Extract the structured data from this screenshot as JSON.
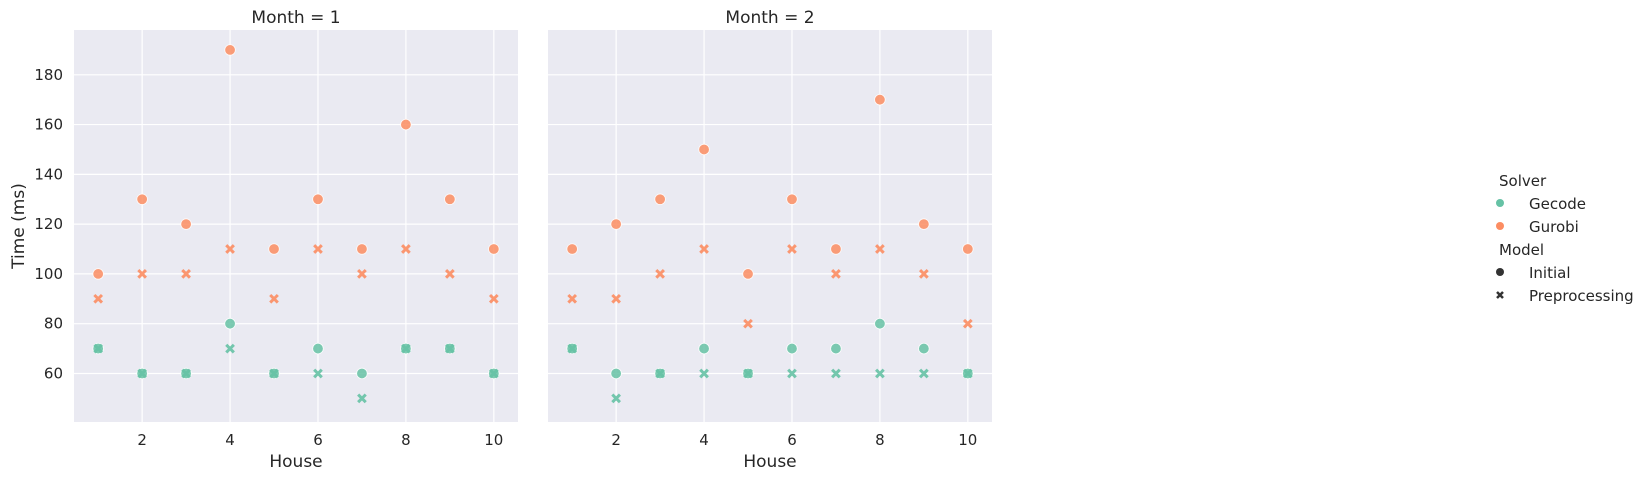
{
  "colors": {
    "Gecode": "#66c2a5",
    "Gurobi": "#fc8d62",
    "panel_bg": "#eaeaf2",
    "grid": "#ffffff",
    "text": "#262626"
  },
  "chart_data": [
    {
      "type": "scatter",
      "title": "Month = 1",
      "xlabel": "House",
      "ylabel": "Time (ms)",
      "xlim": [
        0.45,
        10.55
      ],
      "ylim": [
        40.5,
        198
      ],
      "xticks": [
        2,
        4,
        6,
        8,
        10
      ],
      "yticks": [
        60,
        80,
        100,
        120,
        140,
        160,
        180
      ],
      "grid": true,
      "series": [
        {
          "solver": "Gecode",
          "model": "Initial",
          "marker": "circle",
          "x": [
            1,
            2,
            3,
            4,
            5,
            6,
            7,
            8,
            9,
            10
          ],
          "y": [
            70,
            60,
            60,
            80,
            60,
            70,
            60,
            70,
            70,
            60
          ]
        },
        {
          "solver": "Gecode",
          "model": "Preprocessing",
          "marker": "x",
          "x": [
            1,
            2,
            3,
            4,
            5,
            6,
            7,
            8,
            9,
            10
          ],
          "y": [
            70,
            60,
            60,
            70,
            60,
            60,
            50,
            70,
            70,
            60
          ]
        },
        {
          "solver": "Gurobi",
          "model": "Initial",
          "marker": "circle",
          "x": [
            1,
            2,
            3,
            4,
            5,
            6,
            7,
            8,
            9,
            10
          ],
          "y": [
            100,
            130,
            120,
            190,
            110,
            130,
            110,
            160,
            130,
            110
          ]
        },
        {
          "solver": "Gurobi",
          "model": "Preprocessing",
          "marker": "x",
          "x": [
            1,
            2,
            3,
            4,
            5,
            6,
            7,
            8,
            9,
            10
          ],
          "y": [
            90,
            100,
            100,
            110,
            90,
            110,
            100,
            110,
            100,
            90
          ]
        }
      ]
    },
    {
      "type": "scatter",
      "title": "Month = 2",
      "xlabel": "House",
      "ylabel": "",
      "xlim": [
        0.45,
        10.55
      ],
      "ylim": [
        40.5,
        198
      ],
      "xticks": [
        2,
        4,
        6,
        8,
        10
      ],
      "yticks": [
        60,
        80,
        100,
        120,
        140,
        160,
        180
      ],
      "grid": true,
      "series": [
        {
          "solver": "Gecode",
          "model": "Initial",
          "marker": "circle",
          "x": [
            1,
            2,
            3,
            4,
            5,
            6,
            7,
            8,
            9,
            10
          ],
          "y": [
            70,
            60,
            60,
            70,
            60,
            70,
            70,
            80,
            70,
            60
          ]
        },
        {
          "solver": "Gecode",
          "model": "Preprocessing",
          "marker": "x",
          "x": [
            1,
            2,
            3,
            4,
            5,
            6,
            7,
            8,
            9,
            10
          ],
          "y": [
            70,
            50,
            60,
            60,
            60,
            60,
            60,
            60,
            60,
            60
          ]
        },
        {
          "solver": "Gurobi",
          "model": "Initial",
          "marker": "circle",
          "x": [
            1,
            2,
            3,
            4,
            5,
            6,
            7,
            8,
            9,
            10
          ],
          "y": [
            110,
            120,
            130,
            150,
            100,
            130,
            110,
            170,
            120,
            110
          ]
        },
        {
          "solver": "Gurobi",
          "model": "Preprocessing",
          "marker": "x",
          "x": [
            1,
            2,
            3,
            4,
            5,
            6,
            7,
            8,
            9,
            10
          ],
          "y": [
            90,
            90,
            100,
            110,
            80,
            110,
            100,
            110,
            100,
            80
          ]
        }
      ]
    }
  ],
  "legend": {
    "placement": "right",
    "sections": [
      {
        "title": "Solver",
        "entries": [
          {
            "label": "Gecode",
            "marker": "circle",
            "color": "#66c2a5"
          },
          {
            "label": "Gurobi",
            "marker": "circle",
            "color": "#fc8d62"
          }
        ]
      },
      {
        "title": "Model",
        "entries": [
          {
            "label": "Initial",
            "marker": "circle",
            "color": "#333333"
          },
          {
            "label": "Preprocessing",
            "marker": "x",
            "color": "#333333"
          }
        ]
      }
    ]
  }
}
